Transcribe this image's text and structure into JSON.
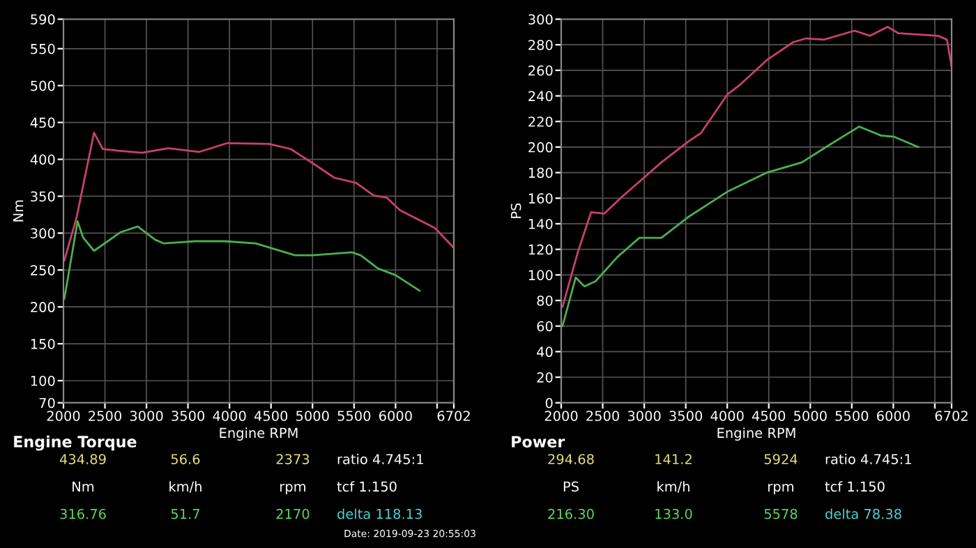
{
  "chart_data": [
    {
      "type": "line",
      "title": "Engine Torque",
      "xlabel": "Engine RPM",
      "ylabel": "Nm",
      "xlim": [
        2000,
        6702
      ],
      "xticks": [
        2000,
        2500,
        3000,
        3500,
        4000,
        4500,
        5000,
        5500,
        6000,
        {
          "value": 6500,
          "label": null
        },
        6702
      ],
      "ylim": [
        70,
        590
      ],
      "yticks": [
        70,
        100,
        150,
        200,
        250,
        300,
        350,
        400,
        450,
        500,
        550,
        590
      ],
      "grid": true,
      "line_style": "solid",
      "series": [
        {
          "color": "#c8406e",
          "x": [
            2011,
            2158,
            2368,
            2474,
            2632,
            2947,
            3263,
            3632,
            3974,
            4474,
            4737,
            5000,
            5263,
            5526,
            5737,
            5895,
            6053,
            6474,
            6702
          ],
          "values": [
            263,
            321,
            436,
            414,
            412,
            409,
            415,
            410,
            422,
            421,
            414,
            395,
            375,
            368,
            351,
            348,
            331,
            307,
            280
          ]
        },
        {
          "color": "#4caf50",
          "x": [
            2011,
            2170,
            2237,
            2368,
            2684,
            2895,
            3105,
            3211,
            3579,
            3947,
            4316,
            4789,
            5000,
            5474,
            5579,
            5789,
            6000,
            6289
          ],
          "values": [
            211,
            316,
            294,
            276,
            301,
            309,
            291,
            286,
            289,
            289,
            286,
            270,
            270,
            274,
            270,
            252,
            243,
            222
          ]
        }
      ],
      "annotations": [
        "434.89",
        "56.6",
        "2373",
        "ratio 4.745:1",
        "Nm",
        "km/h",
        "rpm",
        "tcf 1.150",
        "316.76",
        "51.7",
        "2170",
        "delta 118.13",
        "Date: 2019-09-23 20:55:03"
      ]
    },
    {
      "type": "line",
      "title": "Power",
      "xlabel": "Engine RPM",
      "ylabel": "PS",
      "xlim": [
        2000,
        6702
      ],
      "xticks": [
        2000,
        2500,
        3000,
        3500,
        4000,
        4500,
        5000,
        5500,
        6000,
        {
          "value": 6500,
          "label": null
        },
        6702
      ],
      "ylim": [
        0,
        300
      ],
      "yticks": [
        0,
        20,
        40,
        60,
        80,
        100,
        120,
        140,
        160,
        180,
        200,
        220,
        240,
        260,
        280,
        300
      ],
      "grid": true,
      "line_style": "solid",
      "series": [
        {
          "color": "#c8406e",
          "x": [
            2016,
            2201,
            2360,
            2519,
            2730,
            2995,
            3206,
            3524,
            3683,
            4000,
            4159,
            4476,
            4794,
            4952,
            5164,
            5534,
            5720,
            5931,
            6063,
            6540,
            6646,
            6702
          ],
          "values": [
            75,
            118,
            149,
            148,
            161,
            176,
            188,
            204,
            211,
            241,
            249,
            268,
            282,
            285,
            284,
            291,
            287,
            294,
            289,
            287,
            284,
            263
          ]
        },
        {
          "color": "#4caf50",
          "x": [
            2016,
            2175,
            2280,
            2413,
            2677,
            2942,
            3206,
            3524,
            4000,
            4476,
            4899,
            5164,
            5587,
            5852,
            6011,
            6302
          ],
          "values": [
            60,
            98,
            91,
            95,
            114,
            129,
            129,
            145,
            165,
            180,
            188,
            199,
            216,
            209,
            208,
            200
          ]
        }
      ],
      "annotations": [
        "294.68",
        "141.2",
        "5924",
        "ratio 4.745:1",
        "PS",
        "km/h",
        "rpm",
        "tcf 1.150",
        "216.30",
        "133.0",
        "5578",
        "delta 78.38"
      ]
    }
  ]
}
